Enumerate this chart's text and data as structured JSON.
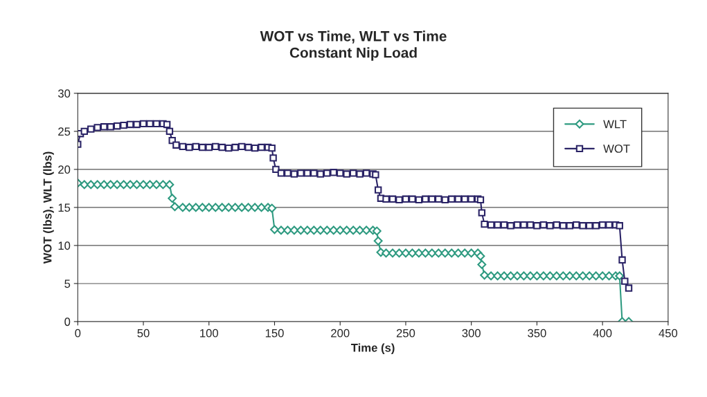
{
  "chart_data": {
    "type": "line",
    "title": "WOT vs Time, WLT vs Time\nConstant Nip Load",
    "xlabel": "Time (s)",
    "ylabel": "WOT (lbs), WLT (lbs)",
    "xlim": [
      0,
      450
    ],
    "xticks": [
      0,
      50,
      100,
      150,
      200,
      250,
      300,
      350,
      400,
      450
    ],
    "ylim": [
      0,
      30
    ],
    "yticks": [
      0,
      5,
      10,
      15,
      20,
      25,
      30
    ],
    "grid": "y",
    "legend": "top right",
    "series": [
      {
        "name": "WLT",
        "color": "#2e9a80",
        "marker": "diamond",
        "x": [
          0,
          5,
          10,
          15,
          20,
          25,
          30,
          35,
          40,
          45,
          50,
          55,
          60,
          65,
          70,
          72,
          74,
          80,
          85,
          90,
          95,
          100,
          105,
          110,
          115,
          120,
          125,
          130,
          135,
          140,
          145,
          148,
          150,
          155,
          160,
          165,
          170,
          175,
          180,
          185,
          190,
          195,
          200,
          205,
          210,
          215,
          220,
          225,
          228,
          229,
          231,
          235,
          240,
          245,
          250,
          255,
          260,
          265,
          270,
          275,
          280,
          285,
          290,
          295,
          300,
          305,
          307,
          308,
          310,
          315,
          320,
          325,
          330,
          335,
          340,
          345,
          350,
          355,
          360,
          365,
          370,
          375,
          380,
          385,
          390,
          395,
          400,
          405,
          410,
          413,
          415,
          420
        ],
        "values": [
          18.2,
          18,
          18,
          18,
          18,
          18,
          18,
          18,
          18,
          18,
          18,
          18,
          18,
          18,
          18,
          16.2,
          15.1,
          15,
          15,
          15,
          15,
          15,
          15,
          15,
          15,
          15,
          15,
          15,
          15,
          15,
          15,
          14.9,
          12.1,
          12,
          12,
          12,
          12,
          12,
          12,
          12,
          12,
          12,
          12,
          12,
          12,
          12,
          12,
          12,
          11.9,
          10.6,
          9.1,
          9,
          9,
          9,
          9,
          9,
          9,
          9,
          9,
          9,
          9,
          9,
          9,
          9,
          9,
          9,
          8.6,
          7.5,
          6.1,
          6,
          6,
          6,
          6,
          6,
          6,
          6,
          6,
          6,
          6,
          6,
          6,
          6,
          6,
          6,
          6,
          6,
          6,
          6,
          6,
          6,
          0,
          0
        ]
      },
      {
        "name": "WOT",
        "color": "#2a2366",
        "marker": "square",
        "x": [
          0,
          2,
          5,
          10,
          15,
          20,
          25,
          30,
          35,
          40,
          45,
          50,
          55,
          60,
          65,
          68,
          70,
          72,
          75,
          80,
          85,
          90,
          95,
          100,
          105,
          110,
          115,
          120,
          125,
          130,
          135,
          140,
          145,
          148,
          149,
          151,
          155,
          160,
          165,
          170,
          175,
          180,
          185,
          190,
          195,
          200,
          205,
          210,
          215,
          220,
          225,
          227,
          229,
          231,
          235,
          240,
          245,
          250,
          255,
          260,
          265,
          270,
          275,
          280,
          285,
          290,
          295,
          300,
          305,
          307,
          308,
          310,
          315,
          320,
          325,
          330,
          335,
          340,
          345,
          350,
          355,
          360,
          365,
          370,
          375,
          380,
          385,
          390,
          395,
          400,
          405,
          410,
          413,
          415,
          417,
          420
        ],
        "values": [
          23.3,
          24.7,
          25,
          25.3,
          25.5,
          25.6,
          25.6,
          25.7,
          25.8,
          25.9,
          25.9,
          26,
          26,
          26,
          26,
          25.9,
          25,
          23.8,
          23.2,
          23,
          22.9,
          23,
          22.9,
          22.9,
          23,
          22.9,
          22.8,
          22.9,
          23,
          22.9,
          22.8,
          22.9,
          22.9,
          22.8,
          21.5,
          20,
          19.5,
          19.5,
          19.4,
          19.5,
          19.5,
          19.5,
          19.4,
          19.5,
          19.6,
          19.5,
          19.4,
          19.5,
          19.4,
          19.5,
          19.4,
          19.3,
          17.3,
          16.2,
          16.1,
          16.1,
          16,
          16.1,
          16.1,
          16,
          16.1,
          16.1,
          16.1,
          16,
          16.1,
          16.1,
          16.1,
          16.1,
          16.1,
          16,
          14.3,
          12.8,
          12.7,
          12.7,
          12.7,
          12.6,
          12.7,
          12.7,
          12.7,
          12.6,
          12.7,
          12.6,
          12.7,
          12.6,
          12.6,
          12.7,
          12.6,
          12.6,
          12.6,
          12.7,
          12.7,
          12.7,
          12.6,
          8.1,
          5.3,
          4.4
        ]
      }
    ]
  }
}
